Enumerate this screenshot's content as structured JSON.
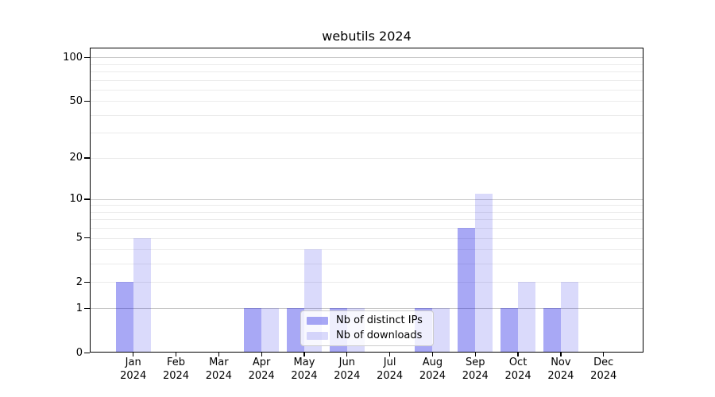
{
  "title": "webutils 2024",
  "chart_data": {
    "type": "bar",
    "title": "webutils 2024",
    "categories": [
      "Jan 2024",
      "Feb 2024",
      "Mar 2024",
      "Apr 2024",
      "May 2024",
      "Jun 2024",
      "Jul 2024",
      "Aug 2024",
      "Sep 2024",
      "Oct 2024",
      "Nov 2024",
      "Dec 2024"
    ],
    "series": [
      {
        "name": "Nb of distinct IPs",
        "color_rgba": "rgba(25,25,230,0.38)",
        "values": [
          2,
          0,
          0,
          1,
          1,
          1,
          0,
          1,
          6,
          1,
          1,
          0
        ]
      },
      {
        "name": "Nb of downloads",
        "color_rgba": "rgba(25,25,230,0.16)",
        "values": [
          5,
          0,
          0,
          1,
          4,
          1,
          0,
          1,
          11,
          2,
          2,
          0
        ]
      }
    ],
    "xlabel": "",
    "ylabel": "",
    "yscale": "log1p",
    "ylim": [
      0,
      115
    ],
    "y_tick_labels": [
      0,
      1,
      2,
      5,
      10,
      20,
      50,
      100
    ],
    "y_grid_major": [
      1,
      10,
      100
    ],
    "y_grid_minor": [
      2,
      3,
      4,
      5,
      6,
      7,
      8,
      9,
      20,
      30,
      40,
      50,
      60,
      70,
      80,
      90
    ],
    "grid": true,
    "legend_position": "lower center"
  },
  "colors": {
    "background": "#ffffff",
    "axes_edge": "#000000",
    "grid_major": "#c6c6c6",
    "grid_minor": "#ebebeb",
    "text": "#000000",
    "bar_distinct_ips_effective": "#a9a9f6",
    "bar_downloads_effective": "#dbdbfb",
    "legend_border": "#cccccc",
    "legend_background": "#ffffff"
  }
}
